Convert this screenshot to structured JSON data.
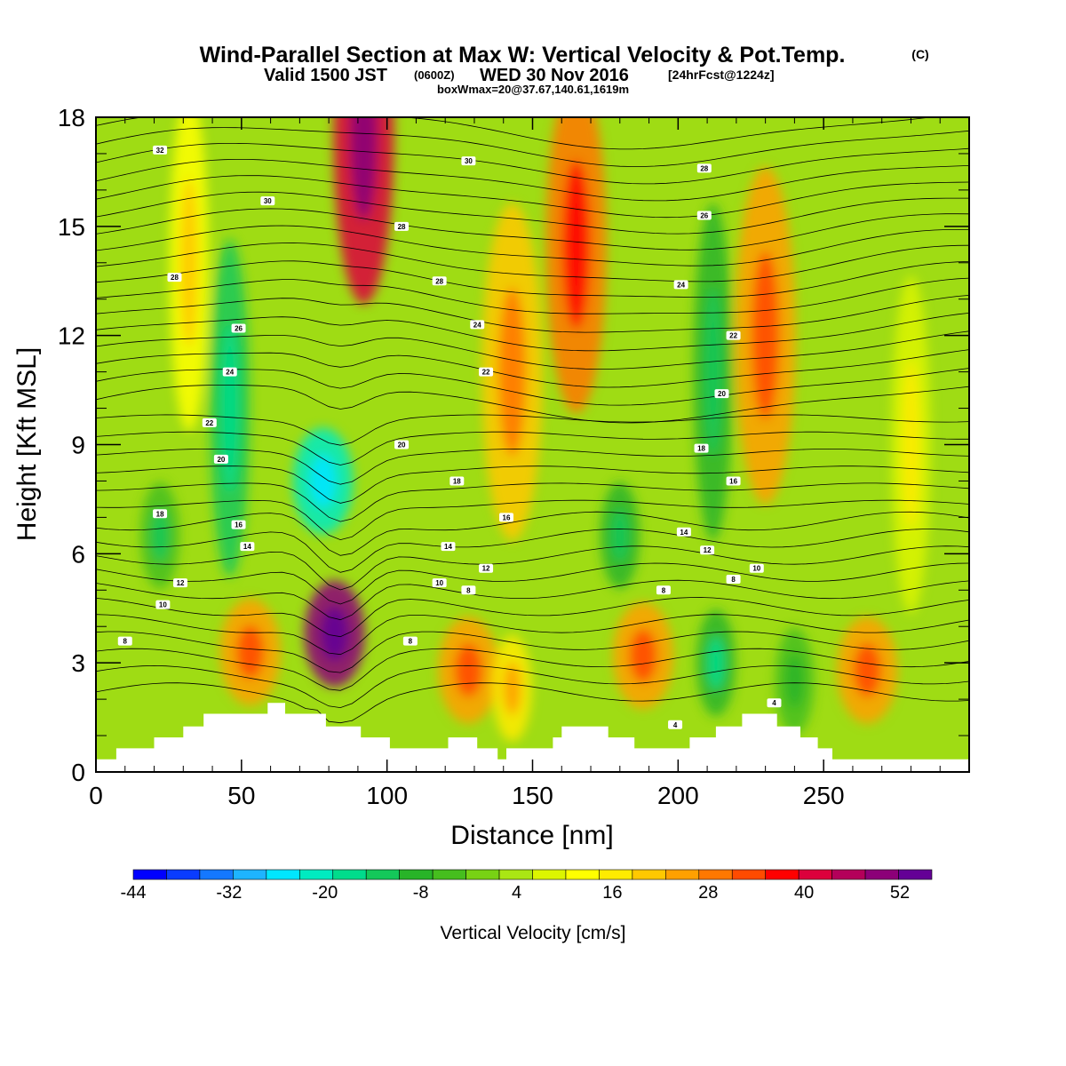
{
  "header": {
    "title": "Wind-Parallel Section at Max W: Vertical Velocity & Pot.Temp.",
    "copyright": "(C)",
    "valid_prefix": "Valid 1500 JST",
    "valid_utc": "(0600Z)",
    "valid_date": "WED 30 Nov 2016",
    "forecast_tag": "[24hrFcst@1224z]",
    "box_info": "boxWmax=20@37.67,140.61,1619m"
  },
  "chart_data": {
    "type": "heatmap",
    "xlabel": "Distance [nm]",
    "ylabel": "Height [Kft MSL]",
    "xlim": [
      0,
      300
    ],
    "ylim": [
      0,
      18
    ],
    "x_ticks": [
      0,
      50,
      100,
      150,
      200,
      250
    ],
    "y_ticks": [
      0,
      3,
      6,
      9,
      12,
      15,
      18
    ],
    "colorbar": {
      "label": "Vertical Velocity [cm/s]",
      "min": -44,
      "max": 56,
      "step": 4,
      "tick_labels": [
        "-44",
        "-32",
        "-20",
        "-8",
        "4",
        "16",
        "28",
        "40",
        "52"
      ],
      "colors": [
        "#0000ff",
        "#0a3cff",
        "#1478ff",
        "#1eb4ff",
        "#00e6ff",
        "#00ebc0",
        "#00dc8c",
        "#14c85a",
        "#28b428",
        "#46be1e",
        "#78d214",
        "#aae614",
        "#dcf500",
        "#ffff00",
        "#ffeb00",
        "#ffc800",
        "#ffa000",
        "#ff7800",
        "#ff4b00",
        "#ff0000",
        "#dc003c",
        "#b4005a",
        "#8c0078",
        "#640096"
      ]
    },
    "terrain": [
      [
        0,
        0.35
      ],
      [
        7,
        0.35
      ],
      [
        7,
        0.65
      ],
      [
        20,
        0.65
      ],
      [
        20,
        0.95
      ],
      [
        30,
        0.95
      ],
      [
        30,
        1.25
      ],
      [
        37,
        1.25
      ],
      [
        37,
        1.6
      ],
      [
        59,
        1.6
      ],
      [
        59,
        1.9
      ],
      [
        65,
        1.9
      ],
      [
        65,
        1.6
      ],
      [
        79,
        1.6
      ],
      [
        79,
        1.25
      ],
      [
        91,
        1.25
      ],
      [
        91,
        0.95
      ],
      [
        101,
        0.95
      ],
      [
        101,
        0.65
      ],
      [
        121,
        0.65
      ],
      [
        121,
        0.95
      ],
      [
        131,
        0.95
      ],
      [
        131,
        0.65
      ],
      [
        138,
        0.65
      ],
      [
        138,
        0.35
      ],
      [
        141,
        0.35
      ],
      [
        141,
        0.65
      ],
      [
        157,
        0.65
      ],
      [
        157,
        0.95
      ],
      [
        160,
        0.95
      ],
      [
        160,
        1.25
      ],
      [
        176,
        1.25
      ],
      [
        176,
        0.95
      ],
      [
        185,
        0.95
      ],
      [
        185,
        0.65
      ],
      [
        204,
        0.65
      ],
      [
        204,
        0.95
      ],
      [
        213,
        0.95
      ],
      [
        213,
        1.25
      ],
      [
        222,
        1.25
      ],
      [
        222,
        1.6
      ],
      [
        234,
        1.6
      ],
      [
        234,
        1.25
      ],
      [
        242,
        1.25
      ],
      [
        242,
        0.95
      ],
      [
        248,
        0.95
      ],
      [
        248,
        0.65
      ],
      [
        253,
        0.65
      ],
      [
        253,
        0.35
      ],
      [
        300,
        0.35
      ]
    ],
    "vv_features": [
      {
        "x": 32,
        "h": 14,
        "value": 10
      },
      {
        "x": 46,
        "h": 10,
        "value": -14
      },
      {
        "x": 78,
        "h": 8,
        "value": -22
      },
      {
        "x": 82,
        "h": 3.8,
        "value": 44
      },
      {
        "x": 92,
        "h": 17.5,
        "value": 36
      },
      {
        "x": 165,
        "h": 14.5,
        "value": 26
      },
      {
        "x": 143,
        "h": 11,
        "value": 18
      },
      {
        "x": 230,
        "h": 12,
        "value": 20
      },
      {
        "x": 212,
        "h": 11,
        "value": -10
      },
      {
        "x": 22,
        "h": 6.5,
        "value": -8
      },
      {
        "x": 213,
        "h": 3,
        "value": -12
      },
      {
        "x": 53,
        "h": 3.3,
        "value": 22
      },
      {
        "x": 128,
        "h": 2.8,
        "value": 20
      },
      {
        "x": 188,
        "h": 3.2,
        "value": 22
      },
      {
        "x": 265,
        "h": 2.8,
        "value": 20
      },
      {
        "x": 143,
        "h": 2.3,
        "value": 14
      },
      {
        "x": 240,
        "h": 2.5,
        "value": -6
      },
      {
        "x": 180,
        "h": 6.5,
        "value": -10
      },
      {
        "x": 280,
        "h": 9,
        "value": 6
      }
    ],
    "contour_labels": [
      {
        "text": "32",
        "x": 22,
        "h": 17.1
      },
      {
        "text": "30",
        "x": 59,
        "h": 15.7
      },
      {
        "text": "28",
        "x": 27,
        "h": 13.6
      },
      {
        "text": "26",
        "x": 49,
        "h": 12.2
      },
      {
        "text": "24",
        "x": 46,
        "h": 11.0
      },
      {
        "text": "22",
        "x": 39,
        "h": 9.6
      },
      {
        "text": "20",
        "x": 43,
        "h": 8.6
      },
      {
        "text": "18",
        "x": 22,
        "h": 7.1
      },
      {
        "text": "16",
        "x": 49,
        "h": 6.8
      },
      {
        "text": "14",
        "x": 52,
        "h": 6.2
      },
      {
        "text": "12",
        "x": 29,
        "h": 5.2
      },
      {
        "text": "10",
        "x": 23,
        "h": 4.6
      },
      {
        "text": "8",
        "x": 10,
        "h": 3.6
      },
      {
        "text": "30",
        "x": 128,
        "h": 16.8
      },
      {
        "text": "28",
        "x": 105,
        "h": 15.0
      },
      {
        "text": "28",
        "x": 118,
        "h": 13.5
      },
      {
        "text": "24",
        "x": 131,
        "h": 12.3
      },
      {
        "text": "22",
        "x": 134,
        "h": 11.0
      },
      {
        "text": "20",
        "x": 105,
        "h": 9.0
      },
      {
        "text": "18",
        "x": 124,
        "h": 8.0
      },
      {
        "text": "16",
        "x": 141,
        "h": 7.0
      },
      {
        "text": "14",
        "x": 121,
        "h": 6.2
      },
      {
        "text": "12",
        "x": 134,
        "h": 5.6
      },
      {
        "text": "10",
        "x": 118,
        "h": 5.2
      },
      {
        "text": "8",
        "x": 128,
        "h": 5.0
      },
      {
        "text": "8",
        "x": 108,
        "h": 3.6
      },
      {
        "text": "28",
        "x": 209,
        "h": 16.6
      },
      {
        "text": "26",
        "x": 209,
        "h": 15.3
      },
      {
        "text": "24",
        "x": 201,
        "h": 13.4
      },
      {
        "text": "22",
        "x": 219,
        "h": 12.0
      },
      {
        "text": "20",
        "x": 215,
        "h": 10.4
      },
      {
        "text": "18",
        "x": 208,
        "h": 8.9
      },
      {
        "text": "16",
        "x": 219,
        "h": 8.0
      },
      {
        "text": "14",
        "x": 202,
        "h": 6.6
      },
      {
        "text": "12",
        "x": 210,
        "h": 6.1
      },
      {
        "text": "10",
        "x": 227,
        "h": 5.6
      },
      {
        "text": "8",
        "x": 219,
        "h": 5.3
      },
      {
        "text": "8",
        "x": 195,
        "h": 5.0
      },
      {
        "text": "4",
        "x": 199,
        "h": 1.3
      },
      {
        "text": "4",
        "x": 233,
        "h": 1.9
      }
    ]
  }
}
